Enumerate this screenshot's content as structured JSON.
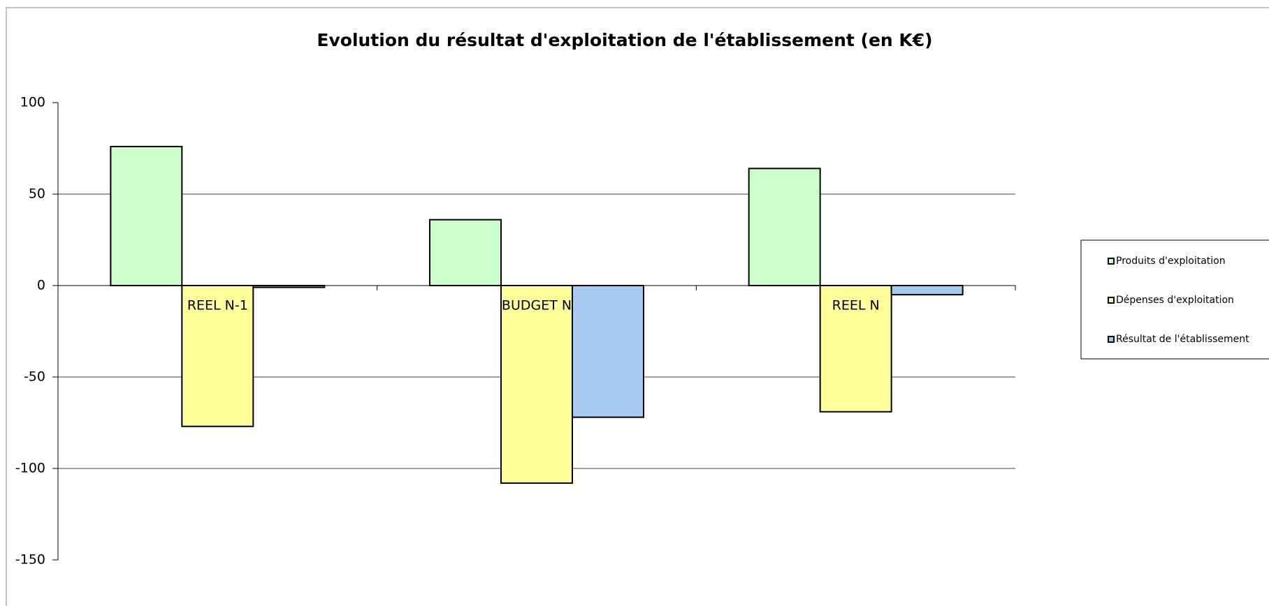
{
  "chart_data": {
    "type": "bar",
    "title": "Evolution du résultat d'exploitation de l'établissement (en K€)",
    "categories": [
      "REEL  N-1",
      "BUDGET N",
      "REEL  N"
    ],
    "series": [
      {
        "name": "Produits d'exploitation",
        "color": "#ccffcc",
        "values": [
          76,
          36,
          64
        ]
      },
      {
        "name": "Dépenses d'exploitation",
        "color": "#ffff99",
        "values": [
          -77,
          -108,
          -69
        ]
      },
      {
        "name": "Résultat de l'établissement",
        "color": "#a6caf0",
        "values": [
          -1,
          -72,
          -5
        ]
      }
    ],
    "ylim": [
      -150,
      100
    ],
    "yticks": [
      100,
      50,
      0,
      -50,
      -100,
      -150
    ],
    "grid": true,
    "legend": "right"
  }
}
